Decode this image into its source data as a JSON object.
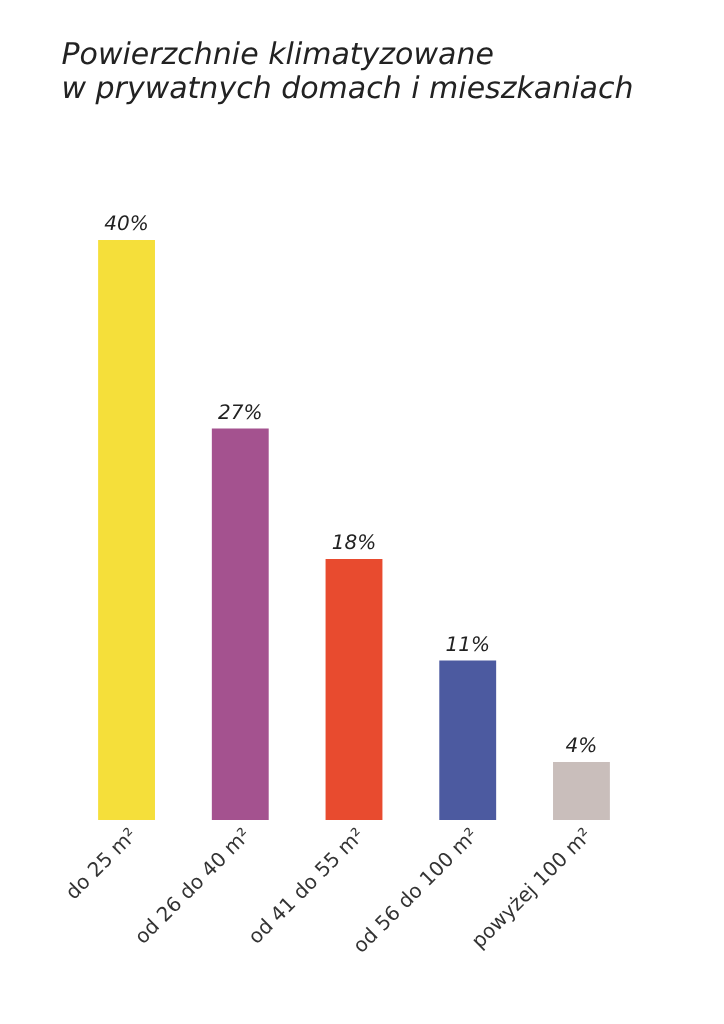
{
  "chart_data": {
    "type": "bar",
    "title": "Powierzchnie klimatyzowane\nw prywatnych domach i mieszkaniach",
    "categories": [
      "do 25 m²",
      "od 26 do 40 m²",
      "od 41 do 55 m²",
      "od 56 do 100 m²",
      "powyżej 100 m²"
    ],
    "values": [
      40,
      27,
      18,
      11,
      4
    ],
    "colors": [
      "#f5df3a",
      "#a4528f",
      "#e84b2f",
      "#4c5aa0",
      "#c9bebb"
    ],
    "value_labels": [
      "40%",
      "27%",
      "18%",
      "11%",
      "4%"
    ]
  }
}
